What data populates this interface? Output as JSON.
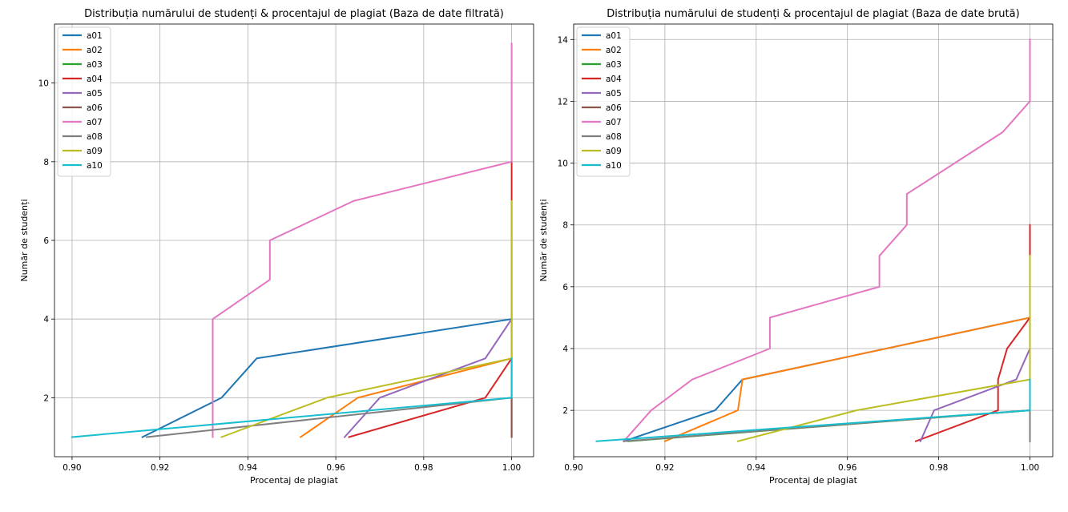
{
  "colors": {
    "a01": "#1f77b4",
    "a02": "#ff7f0e",
    "a03": "#2ca02c",
    "a04": "#d62728",
    "a05": "#9467bd",
    "a06": "#8c564b",
    "a07": "#e377c2",
    "a08": "#7f7f7f",
    "a09": "#bcbd22",
    "a10": "#17becf"
  },
  "chart_data": [
    {
      "type": "line",
      "title": "Distribuția numărului de studenți & procentajul de plagiat (Baza de date filtrată)",
      "xlabel": "Procentaj de plagiat",
      "ylabel": "Număr de studenți",
      "xlim": [
        0.896,
        1.005
      ],
      "ylim": [
        0.5,
        11.5
      ],
      "xticks": [
        0.9,
        0.92,
        0.94,
        0.96,
        0.98,
        1.0
      ],
      "xtick_labels": [
        "0.90",
        "0.92",
        "0.94",
        "0.96",
        "0.98",
        "1.00"
      ],
      "yticks": [
        2,
        4,
        6,
        8,
        10
      ],
      "ytick_labels": [
        "2",
        "4",
        "6",
        "8",
        "10"
      ],
      "grid": true,
      "legend_position": "top-left",
      "series": [
        {
          "name": "a01",
          "x": [
            0.916,
            0.934,
            0.942,
            1.0
          ],
          "y": [
            1,
            2,
            3,
            4
          ]
        },
        {
          "name": "a02",
          "x": [
            0.952,
            0.965,
            1.0
          ],
          "y": [
            1,
            2,
            3
          ]
        },
        {
          "name": "a03",
          "x": [
            1.0,
            1.0
          ],
          "y": [
            1,
            3
          ]
        },
        {
          "name": "a04",
          "x": [
            0.963,
            0.994,
            1.0,
            1.0
          ],
          "y": [
            1,
            2,
            3,
            8
          ]
        },
        {
          "name": "a05",
          "x": [
            0.962,
            0.97,
            0.994,
            1.0
          ],
          "y": [
            1,
            2,
            3,
            4
          ]
        },
        {
          "name": "a06",
          "x": [
            1.0,
            1.0
          ],
          "y": [
            1,
            2
          ]
        },
        {
          "name": "a07",
          "x": [
            0.932,
            0.932,
            0.945,
            0.945,
            0.964,
            1.0,
            1.0
          ],
          "y": [
            1,
            4,
            5,
            6,
            7,
            8,
            11
          ]
        },
        {
          "name": "a08",
          "x": [
            0.917,
            1.0
          ],
          "y": [
            1,
            2
          ]
        },
        {
          "name": "a09",
          "x": [
            0.934,
            0.958,
            1.0,
            1.0
          ],
          "y": [
            1,
            2,
            3,
            7
          ]
        },
        {
          "name": "a10",
          "x": [
            0.9,
            1.0,
            1.0
          ],
          "y": [
            1,
            2,
            3
          ]
        }
      ]
    },
    {
      "type": "line",
      "title": "Distribuția numărului de studenți & procentajul de plagiat (Baza de date brută)",
      "xlabel": "Procentaj de plagiat",
      "ylabel": "Număr de studenți",
      "xlim": [
        0.9,
        1.005
      ],
      "ylim": [
        0.5,
        14.5
      ],
      "xticks": [
        0.9,
        0.92,
        0.94,
        0.96,
        0.98,
        1.0
      ],
      "xtick_labels": [
        "0.90",
        "0.92",
        "0.94",
        "0.96",
        "0.98",
        "1.00"
      ],
      "yticks": [
        2,
        4,
        6,
        8,
        10,
        12,
        14
      ],
      "ytick_labels": [
        "2",
        "4",
        "6",
        "8",
        "10",
        "12",
        "14"
      ],
      "grid": true,
      "legend_position": "top-left",
      "series": [
        {
          "name": "a01",
          "x": [
            0.911,
            0.931,
            0.937,
            1.0
          ],
          "y": [
            1,
            2,
            3,
            5
          ]
        },
        {
          "name": "a02",
          "x": [
            0.92,
            0.936,
            0.937,
            1.0
          ],
          "y": [
            1,
            2,
            3,
            5
          ]
        },
        {
          "name": "a03",
          "x": [
            0.912,
            1.0
          ],
          "y": [
            1,
            2
          ]
        },
        {
          "name": "a04",
          "x": [
            0.975,
            0.993,
            0.993,
            0.995,
            1.0,
            1.0
          ],
          "y": [
            1,
            2,
            3,
            4,
            5,
            8
          ]
        },
        {
          "name": "a05",
          "x": [
            0.976,
            0.979,
            0.997,
            1.0
          ],
          "y": [
            1,
            2,
            3,
            4
          ]
        },
        {
          "name": "a06",
          "x": [
            1.0,
            1.0
          ],
          "y": [
            1,
            2
          ]
        },
        {
          "name": "a07",
          "x": [
            0.911,
            0.917,
            0.926,
            0.943,
            0.943,
            0.967,
            0.967,
            0.973,
            0.973,
            0.994,
            1.0,
            1.0
          ],
          "y": [
            1,
            2,
            3,
            4,
            5,
            6,
            7,
            8,
            9,
            11,
            12,
            14
          ]
        },
        {
          "name": "a08",
          "x": [
            0.911,
            1.0,
            1.0
          ],
          "y": [
            1,
            2,
            1
          ]
        },
        {
          "name": "a09",
          "x": [
            0.936,
            0.962,
            1.0,
            1.0
          ],
          "y": [
            1,
            2,
            3,
            7
          ]
        },
        {
          "name": "a10",
          "x": [
            0.905,
            1.0,
            1.0
          ],
          "y": [
            1,
            2,
            3
          ]
        }
      ]
    }
  ]
}
